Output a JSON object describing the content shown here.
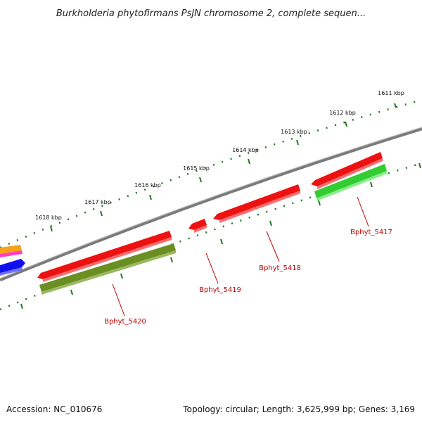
{
  "title": "Burkholderia phytofirmans PsJN chromosome 2, complete sequen...",
  "footer": {
    "accession": "Accession: NC_010676",
    "summary": "Topology: circular; Length: 3,625,999 bp; Genes: 3,169"
  },
  "ticks": [
    {
      "label": "1611 kbp"
    },
    {
      "label": "1612 kbp"
    },
    {
      "label": "1613 kbp"
    },
    {
      "label": "1614 kbp"
    },
    {
      "label": "1615 kbp"
    },
    {
      "label": "1616 kbp"
    },
    {
      "label": "1617 kbp"
    },
    {
      "label": "1618 kbp"
    }
  ],
  "genes": [
    {
      "label": "Bphyt_5417"
    },
    {
      "label": "Bphyt_5418"
    },
    {
      "label": "Bphyt_5419"
    },
    {
      "label": "Bphyt_5420"
    }
  ],
  "colors": {
    "backbone": "#7a7a7a",
    "tick": "#1f7a1f",
    "gene_red": "#ee1111",
    "gene_green": "#33cc33",
    "gene_olive": "#6b8e23",
    "label": "#c00000"
  }
}
